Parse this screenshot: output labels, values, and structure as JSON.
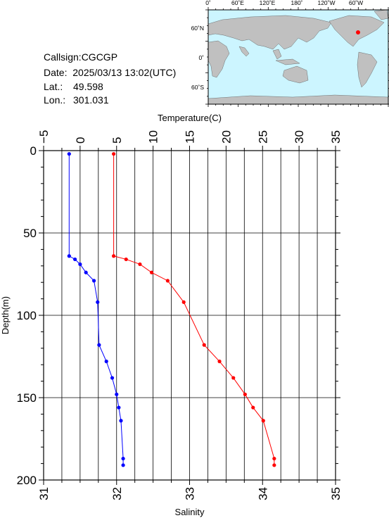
{
  "info": {
    "callsign": "Callsign:CGCGP",
    "date": "Date:  2025/03/13 13:02(UTC)",
    "lat_label": "Lat.:",
    "lat_value": "49.598",
    "lon_label": "Lon.:",
    "lon_value": "301.031"
  },
  "map": {
    "top_labels": [
      "0˚",
      "60˚E",
      "120˚E",
      "180˚",
      "120˚W",
      "60˚W"
    ],
    "left_labels": [
      "60˚N",
      "0˚",
      "60˚S"
    ],
    "ocean_color": "#ccf5ff",
    "land_color": "#c0c0c0",
    "marker_color": "#ff0000"
  },
  "chart_data": {
    "type": "line",
    "ylabel": "Depth(m)",
    "top_xlabel": "Temperature(C)",
    "bottom_xlabel": "Salinity",
    "depth_range": [
      0,
      200
    ],
    "depth_ticks": [
      "0",
      "50",
      "100",
      "150",
      "200"
    ],
    "temperature_range": [
      -5,
      35
    ],
    "temperature_ticks": [
      "−5",
      "0",
      "5",
      "10",
      "15",
      "20",
      "25",
      "30",
      "35"
    ],
    "salinity_range": [
      31,
      35
    ],
    "salinity_ticks": [
      "31",
      "32",
      "33",
      "34",
      "35"
    ],
    "grid": true,
    "series": [
      {
        "axis": "salinity",
        "color": "#0000ff",
        "depth": [
          2,
          64,
          66,
          69,
          74,
          79,
          92,
          118,
          128,
          138,
          148,
          156,
          164,
          187,
          191
        ],
        "value": [
          31.35,
          31.35,
          31.43,
          31.5,
          31.58,
          31.69,
          31.74,
          31.76,
          31.86,
          31.94,
          32.0,
          32.03,
          32.06,
          32.09,
          32.09
        ]
      },
      {
        "axis": "temperature",
        "color": "#ff0000",
        "depth": [
          2,
          64,
          66,
          69,
          74,
          79,
          92,
          118,
          128,
          138,
          148,
          156,
          164,
          187,
          191
        ],
        "value": [
          4.6,
          4.6,
          6.3,
          8.2,
          9.8,
          12.0,
          14.2,
          17.0,
          19.1,
          21.0,
          22.6,
          23.7,
          25.1,
          26.6,
          26.6
        ]
      }
    ]
  }
}
